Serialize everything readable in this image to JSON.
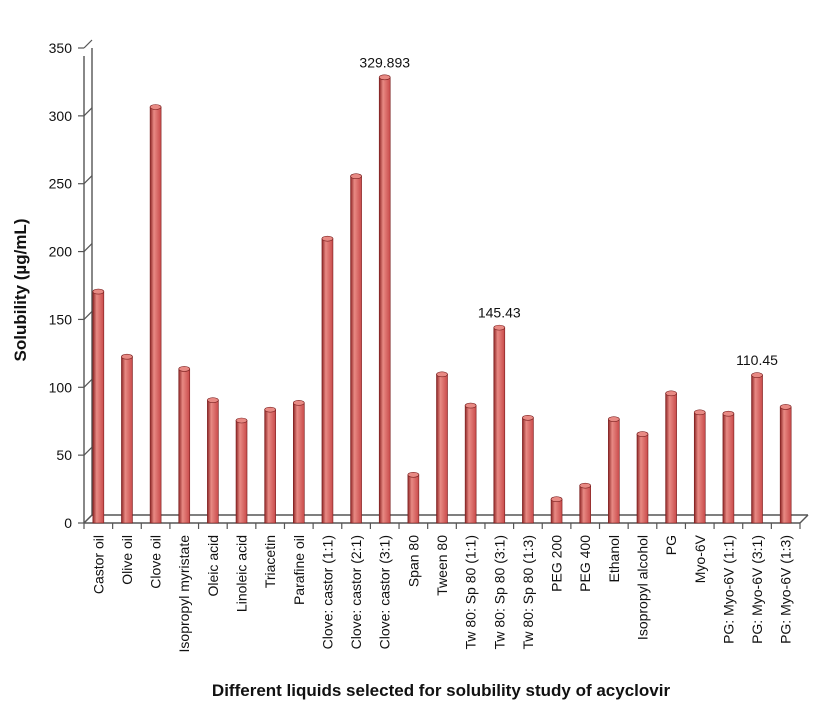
{
  "chart_data": {
    "type": "bar",
    "title": "",
    "xlabel": "Different liquids selected for solubility study of acyclovir",
    "ylabel": "Solubility (µg/mL)",
    "ylim": [
      0,
      350
    ],
    "yticks": [
      0,
      50,
      100,
      150,
      200,
      250,
      300,
      350
    ],
    "grid": false,
    "bar_color": "#c94a4a",
    "bar_highlight": "#e88a84",
    "bar_shadow": "#8e2525",
    "categories": [
      "Castor oil",
      "Olive oil",
      "Clove oil",
      "Isopropyl myristate",
      "Oleic acid",
      "Linoleic acid",
      "Triacetin",
      "Parafine oil",
      "Clove: castor (1:1)",
      "Clove: castor (2:1)",
      "Clove: castor (3:1)",
      "Span 80",
      "Tween 80",
      "Tw 80: Sp 80 (1:1)",
      "Tw 80: Sp 80 (3:1)",
      "Tw 80: Sp 80 (1:3)",
      "PEG 200",
      "PEG 400",
      "Ethanol",
      "Isopropyl alcohol",
      "PG",
      "Myo-6V",
      "PG: Myo-6V (1:1)",
      "PG: Myo-6V (3:1)",
      "PG: Myo-6V (1:3)"
    ],
    "values": [
      172,
      124,
      308,
      115,
      92,
      77,
      85,
      90,
      211,
      257,
      329.893,
      37,
      111,
      88,
      145.43,
      79,
      19,
      29,
      78,
      67,
      97,
      83,
      82,
      110.45,
      87
    ],
    "data_labels": [
      {
        "index": 10,
        "text": "329.893"
      },
      {
        "index": 14,
        "text": "145.43"
      },
      {
        "index": 23,
        "text": "110.45"
      }
    ]
  }
}
